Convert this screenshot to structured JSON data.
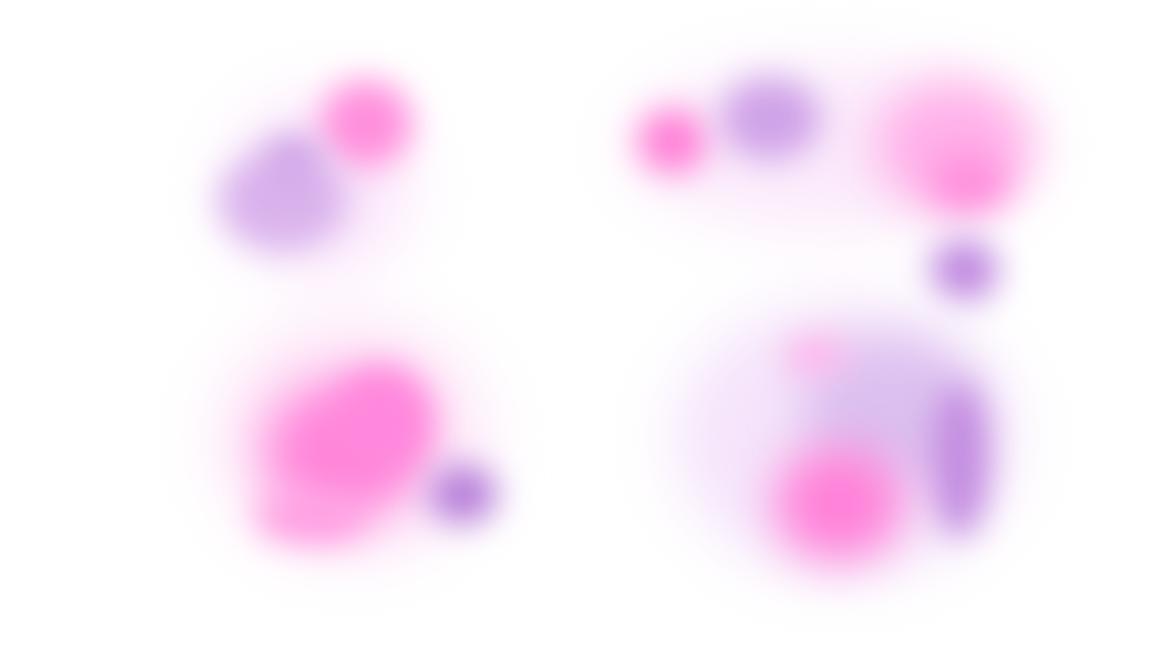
{
  "palette": {
    "background": "#ffffff",
    "pink": "#ff7fd6",
    "pink_light": "#ffc2ee",
    "lilac": "#c99be3",
    "lilac_light": "#e6cdf5",
    "violet": "#b77fd9",
    "haze": "#fbe6fb"
  }
}
